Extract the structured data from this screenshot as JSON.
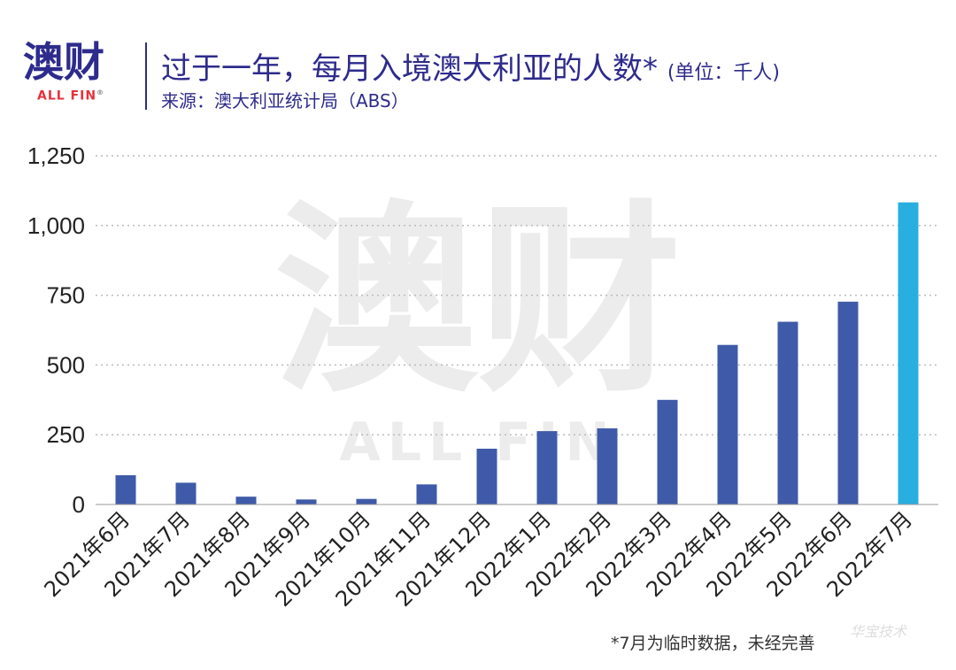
{
  "header": {
    "logo_text": "澳财",
    "logo_sub": "ALL FIN",
    "logo_reg": "®",
    "title": "过于一年，每月入境澳大利亚的人数*",
    "title_unit": "(单位：千人)",
    "source": "来源：澳大利亚统计局（ABS）"
  },
  "watermark": {
    "main": "澳财",
    "sub": "ALL FIN"
  },
  "footnote": "*7月为临时数据，未经完善",
  "stamp": "华宝技术",
  "colors": {
    "bar": "#3f5aa8",
    "highlight": "#29aee0",
    "title": "#2e2b8c",
    "grid": "#bbbbbb"
  },
  "chart_data": {
    "type": "bar",
    "categories": [
      "2021年6月",
      "2021年7月",
      "2021年8月",
      "2021年9月",
      "2021年10月",
      "2021年11月",
      "2021年12月",
      "2022年1月",
      "2022年2月",
      "2022年3月",
      "2022年4月",
      "2022年5月",
      "2022年6月",
      "2022年7月"
    ],
    "values": [
      105,
      78,
      28,
      18,
      20,
      72,
      200,
      263,
      273,
      375,
      572,
      655,
      727,
      1083
    ],
    "highlight_index": 13,
    "ylim": [
      0,
      1250
    ],
    "yticks": [
      0,
      250,
      500,
      750,
      1000,
      1250
    ],
    "ytick_labels": [
      "0",
      "250",
      "500",
      "750",
      "1,000",
      "1,250"
    ],
    "grid": "horizontal-dotted",
    "xlabel": "",
    "ylabel": ""
  }
}
